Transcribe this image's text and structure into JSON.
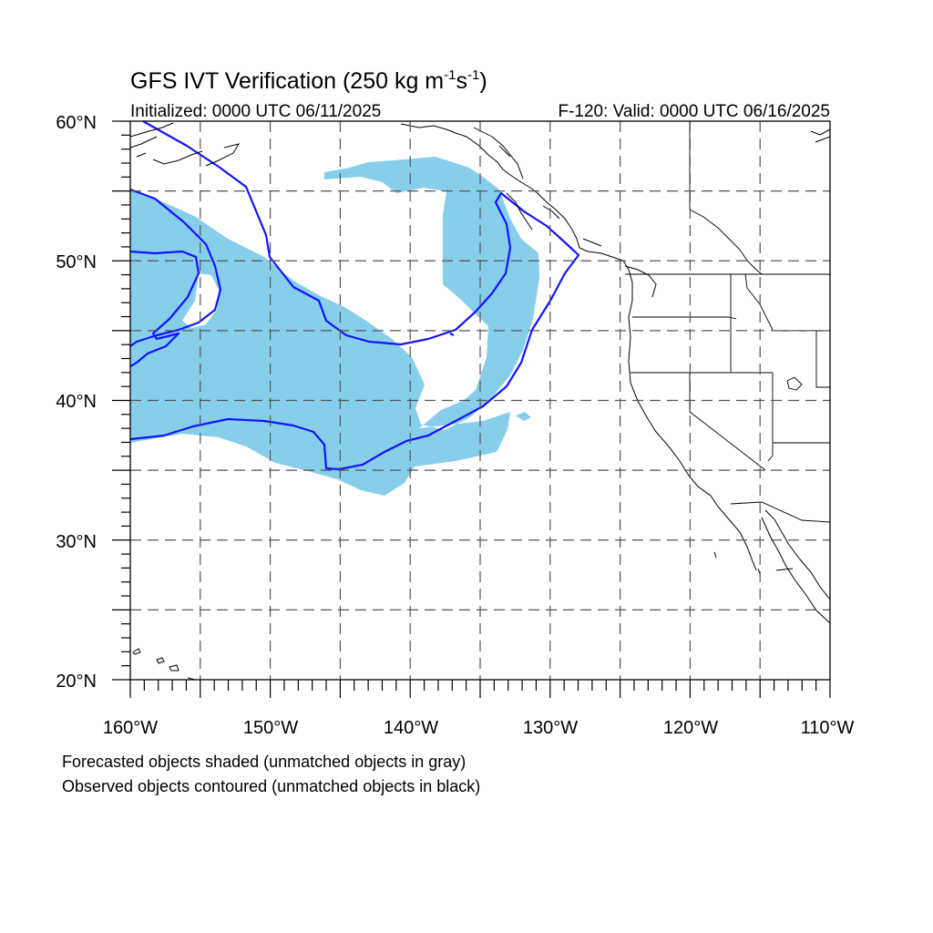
{
  "title_main": "GFS IVT Verification (250 kg m",
  "title_sup1": "-1",
  "title_mid": "s",
  "title_sup2": "-1",
  "title_end": ")",
  "initialized": "Initialized: 0000 UTC 06/11/2025",
  "valid": "F-120: Valid: 0000 UTC 06/16/2025",
  "lat_labels": [
    "60°N",
    "50°N",
    "40°N",
    "30°N",
    "20°N"
  ],
  "lon_labels": [
    "160°W",
    "150°W",
    "140°W",
    "130°W",
    "120°W",
    "110°W"
  ],
  "caption_forecast": "Forecasted objects shaded (unmatched objects in gray)",
  "caption_observed": "Observed objects contoured (unmatched objects in black)",
  "colors": {
    "forecast_fill": "#87ceeb",
    "observed_contour": "#1414ff",
    "coastline": "#000000",
    "gridline": "#555555"
  },
  "map": {
    "lon_range": [
      -160,
      -110
    ],
    "lat_range": [
      20,
      60
    ],
    "grid_lons": [
      -160,
      -155,
      -150,
      -145,
      -140,
      -135,
      -130,
      -125,
      -120,
      -115,
      -110
    ],
    "grid_lats": [
      20,
      25,
      30,
      35,
      40,
      45,
      50,
      55,
      60
    ]
  }
}
